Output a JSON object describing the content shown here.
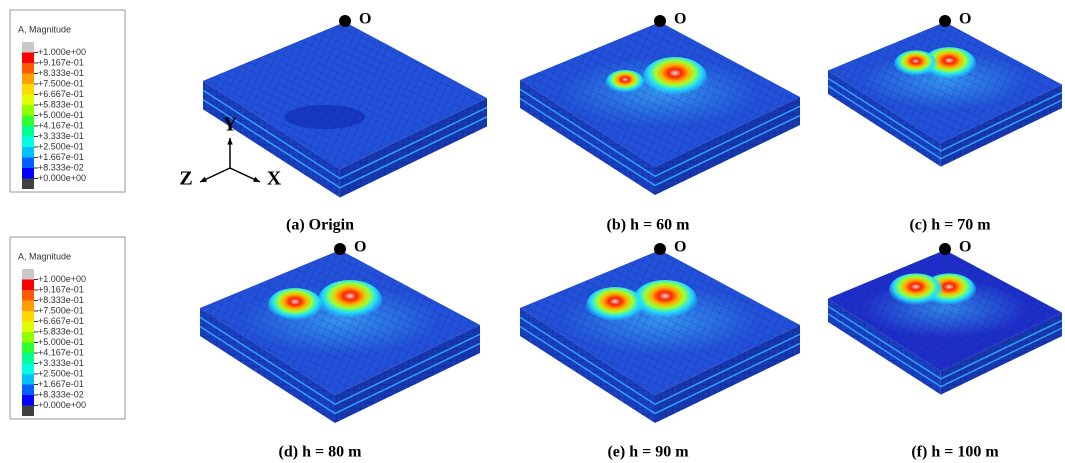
{
  "legend": {
    "title": "A, Magnitude",
    "labels": [
      "+1.000e+00",
      "+9.167e-01",
      "+8.333e-01",
      "+7.500e-01",
      "+6.667e-01",
      "+5.833e-01",
      "+5.000e-01",
      "+4.167e-01",
      "+3.333e-01",
      "+2.500e-01",
      "+1.667e-01",
      "+8.333e-02",
      "+0.000e+00"
    ]
  },
  "axes": {
    "y": "Y",
    "z": "Z",
    "x": "X"
  },
  "origin_label": "O",
  "panels": [
    {
      "caption": "(a) Origin"
    },
    {
      "caption": "(b) h = 60 m"
    },
    {
      "caption": "(c) h = 70 m"
    },
    {
      "caption": "(d) h = 80 m"
    },
    {
      "caption": "(e) h = 90 m"
    },
    {
      "caption": "(f) h = 100 m"
    }
  ]
}
